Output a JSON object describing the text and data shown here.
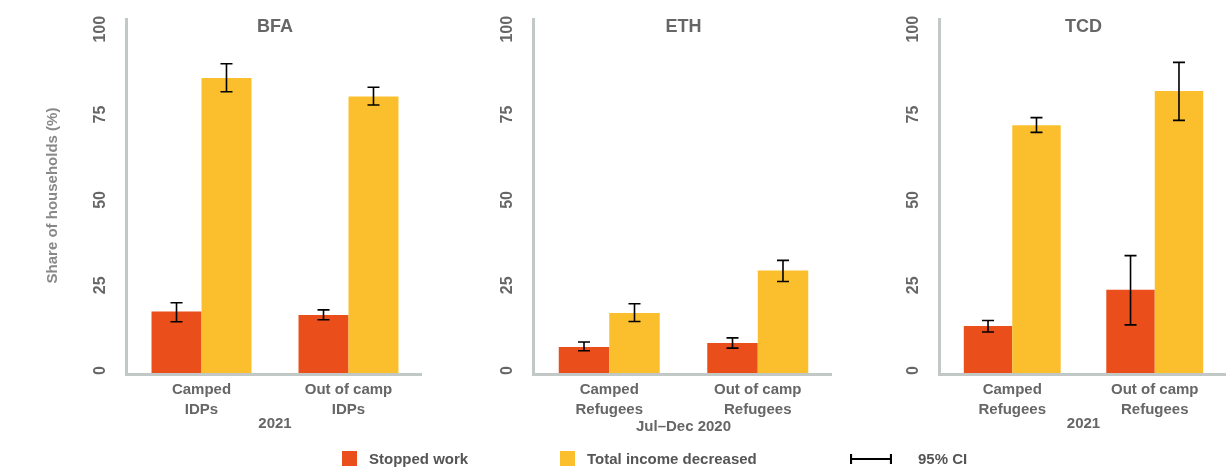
{
  "chart_data": [
    {
      "type": "bar",
      "title": "BFA",
      "xlabel": "2021",
      "ylabel": "Share of households (%)",
      "categories": [
        "Camped IDPs",
        "Out of camp IDPs"
      ],
      "series": [
        {
          "name": "Stopped work",
          "color": "#e94e1b",
          "values": [
            18,
            17
          ],
          "errors": [
            [
              15,
              20.6
            ],
            [
              15.6,
              18.5
            ]
          ]
        },
        {
          "name": "Total income decreased",
          "color": "#fbbf2d",
          "values": [
            86.4,
            81
          ],
          "errors": [
            [
              82.4,
              90.6
            ],
            [
              78.5,
              83.7
            ]
          ]
        }
      ],
      "ylim": [
        0,
        104
      ],
      "yticks": [
        0,
        25,
        50,
        75,
        100
      ],
      "grid": false,
      "legend": "bottom",
      "annotations": [
        "95% CI"
      ]
    },
    {
      "type": "bar",
      "title": "ETH",
      "xlabel": "Jul–Dec 2020",
      "categories": [
        "Camped Refugees",
        "Out of camp Refugees"
      ],
      "series": [
        {
          "color": "#e94e1b",
          "values": [
            7.6,
            8.8
          ],
          "errors": [
            [
              6.5,
              9.1
            ],
            [
              7.3,
              10.3
            ]
          ]
        },
        {
          "color": "#fbbf2d",
          "values": [
            17.6,
            30
          ],
          "errors": [
            [
              15.1,
              20.3
            ],
            [
              26.8,
              33
            ]
          ]
        }
      ],
      "ylim": [
        0,
        104
      ],
      "yticks": [
        0,
        25,
        50,
        75,
        100
      ],
      "grid": false
    },
    {
      "type": "bar",
      "title": "TCD",
      "xlabel": "2021",
      "categories": [
        "Camped Refugees",
        "Out of camp Refugees"
      ],
      "series": [
        {
          "color": "#e94e1b",
          "values": [
            13.8,
            24.4
          ],
          "errors": [
            [
              12,
              15.4
            ],
            [
              14.1,
              34.4
            ]
          ]
        },
        {
          "color": "#fbbf2d",
          "values": [
            72.6,
            82.6
          ],
          "errors": [
            [
              70.5,
              74.8
            ],
            [
              74,
              91
            ]
          ]
        }
      ],
      "ylim": [
        0,
        104
      ],
      "yticks": [
        0,
        25,
        50,
        75,
        100
      ],
      "grid": false
    }
  ]
}
